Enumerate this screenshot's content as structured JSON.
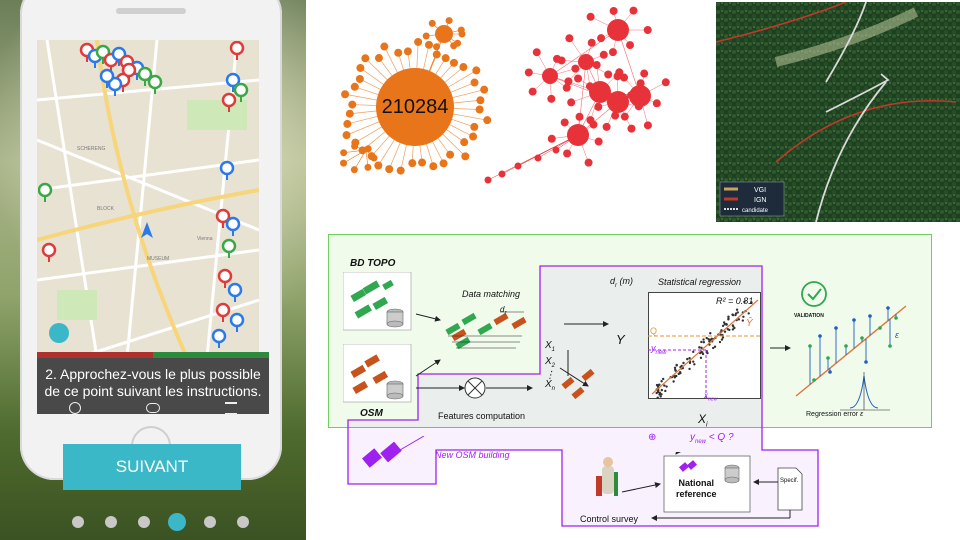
{
  "phone": {
    "instruction": "2. Approchez-vous le plus possible de ce point suivant les instructions.",
    "button_label": "SUIVANT",
    "dots_count": 6,
    "active_dot": 4
  },
  "graphs": {
    "orange_hub_label": "210284",
    "orange_color": "#e8751a",
    "red_color": "#e8323a"
  },
  "satellite": {
    "legend": [
      "VGI",
      "IGN",
      "candidate"
    ],
    "legend_colors": [
      "#c9a45a",
      "#c0392b",
      "#d9d9d9"
    ]
  },
  "diagram": {
    "bd_topo": "BD TOPO",
    "osm": "OSM",
    "data_matching": "Data matching",
    "features_computation": "Features computation",
    "statistical_regression": "Statistical regression",
    "dr_axis": "d",
    "dr_sub": "r",
    "dr_unit": " (m)",
    "dr_small": "d",
    "r2": "R² = 0.81",
    "y_axis": "Y",
    "y_hat": "Ŷ",
    "q_label": "Q",
    "ynew_left": "y",
    "new_sub": "new",
    "xnew": "x",
    "xi": "X",
    "xi_sub": "i",
    "x1": "X",
    "x2": "X",
    "xn": "X",
    "x_subs": [
      "1",
      "2",
      "n"
    ],
    "validation": "VALIDATION",
    "regression_error": "Regression error",
    "epsilon": "ε",
    "new_osm_building": "New OSM building",
    "national_reference": "National reference",
    "national": "National",
    "reference": "reference",
    "control_survey": "Control survey",
    "specif": "Specif.",
    "condition": "< Q  ?",
    "plus": "⊕",
    "ticks_x": [
      "0.0",
      "0.2",
      "0.4",
      "0.6",
      "0.8",
      "1.0"
    ],
    "ticks_y": [
      "0.0",
      "0.2",
      "0.4",
      "0.6",
      "0.8",
      "1.0"
    ],
    "green": "#2fa84f",
    "orange": "#d2691e",
    "purple": "#a020f0"
  }
}
